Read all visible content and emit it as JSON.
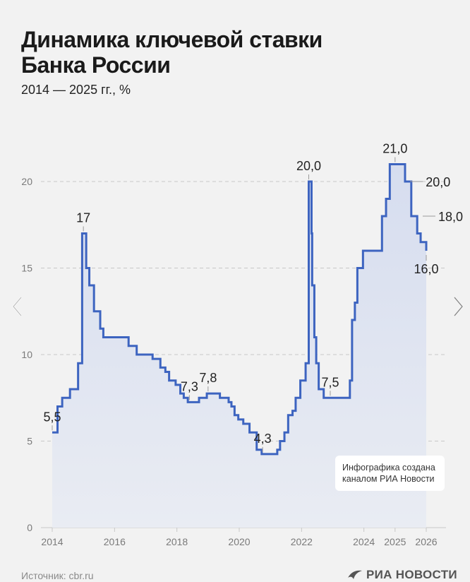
{
  "header": {
    "title_line1": "Динамика ключевой ставки",
    "title_line2": "Банка России",
    "subtitle": "2014 — 2025 гг., %"
  },
  "credit": {
    "line1": "Инфографика создана",
    "line2": "каналом РИА Новости"
  },
  "footer": {
    "source": "Источник: cbr.ru",
    "logo_text": "РИА НОВОСТИ"
  },
  "nav": {
    "prev_icon": "chevron-left-icon",
    "next_icon": "chevron-right-icon"
  },
  "colors": {
    "line": "#3d64c0",
    "fill": "#dde3f1",
    "grid": "#c8c8c8",
    "label": "#222222",
    "axis_label": "#7a7a7a",
    "background": "#f2f2f2"
  },
  "chart_data": {
    "type": "line",
    "title": "Динамика ключевой ставки Банка России",
    "subtitle": "2014 — 2025 гг., %",
    "xlabel": "",
    "ylabel": "",
    "step": true,
    "fill": true,
    "grid": true,
    "ylim": [
      0,
      21
    ],
    "xlim": [
      2014,
      2026
    ],
    "x_ticks": [
      "2014",
      "2016",
      "2018",
      "2020",
      "2022",
      "2024",
      "2025",
      "2026"
    ],
    "y_ticks": [
      "0",
      "5",
      "10",
      "15",
      "20"
    ],
    "series": [
      {
        "points": [
          [
            2014.0,
            5.5
          ],
          [
            2014.17,
            7.0
          ],
          [
            2014.32,
            7.5
          ],
          [
            2014.57,
            8.0
          ],
          [
            2014.83,
            9.5
          ],
          [
            2014.96,
            17.0
          ],
          [
            2015.09,
            15.0
          ],
          [
            2015.19,
            14.0
          ],
          [
            2015.34,
            12.5
          ],
          [
            2015.54,
            11.5
          ],
          [
            2015.64,
            11.0
          ],
          [
            2016.45,
            10.5
          ],
          [
            2016.71,
            10.0
          ],
          [
            2017.22,
            9.75
          ],
          [
            2017.47,
            9.25
          ],
          [
            2017.63,
            9.0
          ],
          [
            2017.75,
            8.5
          ],
          [
            2017.96,
            8.25
          ],
          [
            2018.11,
            7.75
          ],
          [
            2018.22,
            7.5
          ],
          [
            2018.35,
            7.25
          ],
          [
            2018.71,
            7.5
          ],
          [
            2018.96,
            7.75
          ],
          [
            2019.38,
            7.5
          ],
          [
            2019.66,
            7.25
          ],
          [
            2019.75,
            7.0
          ],
          [
            2019.85,
            6.5
          ],
          [
            2019.97,
            6.25
          ],
          [
            2020.13,
            6.0
          ],
          [
            2020.33,
            5.5
          ],
          [
            2020.56,
            4.5
          ],
          [
            2020.72,
            4.25
          ],
          [
            2021.22,
            4.5
          ],
          [
            2021.31,
            5.0
          ],
          [
            2021.45,
            5.5
          ],
          [
            2021.57,
            6.5
          ],
          [
            2021.71,
            6.75
          ],
          [
            2021.81,
            7.5
          ],
          [
            2021.96,
            8.5
          ],
          [
            2022.13,
            9.5
          ],
          [
            2022.23,
            20.0
          ],
          [
            2022.32,
            17.0
          ],
          [
            2022.34,
            14.0
          ],
          [
            2022.41,
            11.0
          ],
          [
            2022.47,
            9.5
          ],
          [
            2022.55,
            8.0
          ],
          [
            2022.71,
            7.5
          ],
          [
            2023.55,
            8.5
          ],
          [
            2023.62,
            12.0
          ],
          [
            2023.71,
            13.0
          ],
          [
            2023.79,
            15.0
          ],
          [
            2023.97,
            16.0
          ],
          [
            2024.58,
            18.0
          ],
          [
            2024.71,
            19.0
          ],
          [
            2024.83,
            21.0
          ],
          [
            2025.32,
            20.0
          ],
          [
            2025.52,
            18.0
          ],
          [
            2025.71,
            17.0
          ],
          [
            2025.82,
            16.5
          ],
          [
            2026.0,
            16.0
          ]
        ]
      }
    ],
    "annotations": [
      {
        "x": 2014.0,
        "y": 5.5,
        "text": "5,5",
        "pos": "above"
      },
      {
        "x": 2015.0,
        "y": 17.0,
        "text": "17",
        "pos": "above"
      },
      {
        "x": 2018.4,
        "y": 7.25,
        "text": "7,3",
        "pos": "above"
      },
      {
        "x": 2019.0,
        "y": 7.75,
        "text": "7,8",
        "pos": "above"
      },
      {
        "x": 2020.75,
        "y": 4.25,
        "text": "4,3",
        "pos": "above"
      },
      {
        "x": 2022.23,
        "y": 20.0,
        "text": "20,0",
        "pos": "above"
      },
      {
        "x": 2022.92,
        "y": 7.5,
        "text": "7,5",
        "pos": "above"
      },
      {
        "x": 2025.0,
        "y": 21.0,
        "text": "21,0",
        "pos": "above"
      },
      {
        "x": 2025.35,
        "y": 20.0,
        "text": "20,0",
        "pos": "right"
      },
      {
        "x": 2025.75,
        "y": 18.0,
        "text": "18,0",
        "pos": "right"
      },
      {
        "x": 2026.0,
        "y": 16.0,
        "text": "16,0",
        "pos": "below"
      }
    ]
  }
}
